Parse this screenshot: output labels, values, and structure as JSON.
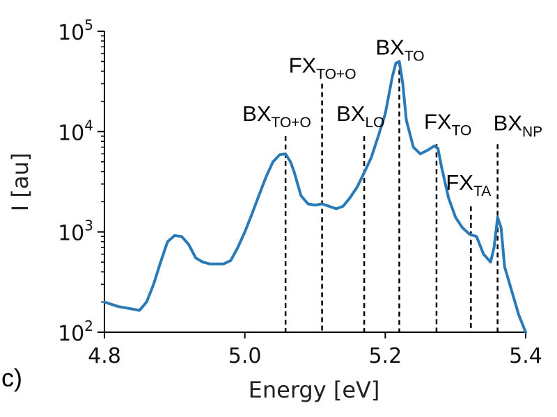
{
  "panel_label": "c)",
  "chart_data": {
    "type": "line",
    "xlabel": "Energy [eV]",
    "ylabel": "I [au]",
    "xlim": [
      4.8,
      5.4
    ],
    "ylim": [
      100,
      100000
    ],
    "yscale": "log",
    "x_ticks": [
      {
        "value": 4.8,
        "label": "4.8"
      },
      {
        "value": 5.0,
        "label": "5.0"
      },
      {
        "value": 5.2,
        "label": "5.2"
      },
      {
        "value": 5.4,
        "label": "5.4"
      }
    ],
    "y_ticks": [
      {
        "value": 100,
        "base": "10",
        "exp": "2"
      },
      {
        "value": 1000,
        "base": "10",
        "exp": "3"
      },
      {
        "value": 10000,
        "base": "10",
        "exp": "4"
      },
      {
        "value": 100000,
        "base": "10",
        "exp": "5"
      }
    ],
    "grid": false,
    "line_color": "#2a7ab8",
    "series": [
      {
        "x": [
          4.8,
          4.81,
          4.82,
          4.83,
          4.84,
          4.85,
          4.86,
          4.87,
          4.88,
          4.89,
          4.9,
          4.91,
          4.92,
          4.93,
          4.94,
          4.95,
          4.96,
          4.97,
          4.98,
          4.99,
          5.0,
          5.01,
          5.02,
          5.03,
          5.04,
          5.05,
          5.058,
          5.065,
          5.07,
          5.08,
          5.09,
          5.1,
          5.11,
          5.12,
          5.13,
          5.14,
          5.15,
          5.16,
          5.17,
          5.18,
          5.19,
          5.2,
          5.21,
          5.215,
          5.22,
          5.225,
          5.23,
          5.24,
          5.25,
          5.26,
          5.27,
          5.275,
          5.28,
          5.29,
          5.3,
          5.31,
          5.32,
          5.33,
          5.34,
          5.35,
          5.355,
          5.36,
          5.365,
          5.37,
          5.38,
          5.39,
          5.4
        ],
        "y": [
          200,
          190,
          180,
          175,
          170,
          165,
          200,
          300,
          500,
          800,
          920,
          900,
          750,
          550,
          500,
          480,
          480,
          480,
          520,
          700,
          1000,
          1500,
          2300,
          3500,
          5000,
          5900,
          6000,
          5000,
          4000,
          2300,
          1900,
          1850,
          1900,
          1800,
          1700,
          1800,
          2200,
          2800,
          3900,
          5500,
          9000,
          15000,
          35000,
          48000,
          50000,
          30000,
          13000,
          7000,
          6000,
          6500,
          7200,
          6800,
          4500,
          2200,
          1400,
          1100,
          950,
          900,
          600,
          500,
          700,
          1400,
          1100,
          450,
          260,
          150,
          100
        ]
      }
    ],
    "annotations": [
      {
        "label": "BX",
        "sub": "TO+O",
        "x": 5.058,
        "top": 9000
      },
      {
        "label": "FX",
        "sub": "TO+O",
        "x": 5.11,
        "top": 30000
      },
      {
        "label": "BX",
        "sub": "LO",
        "x": 5.17,
        "top": 9000
      },
      {
        "label": "BX",
        "sub": "TO",
        "x": 5.22,
        "top": 50000
      },
      {
        "label": "FX",
        "sub": "TO",
        "x": 5.273,
        "top": 7500
      },
      {
        "label": "FX",
        "sub": "TA",
        "x": 5.322,
        "top": 1800
      },
      {
        "label": "BX",
        "sub": "NP",
        "x": 5.36,
        "top": 7500
      }
    ]
  }
}
